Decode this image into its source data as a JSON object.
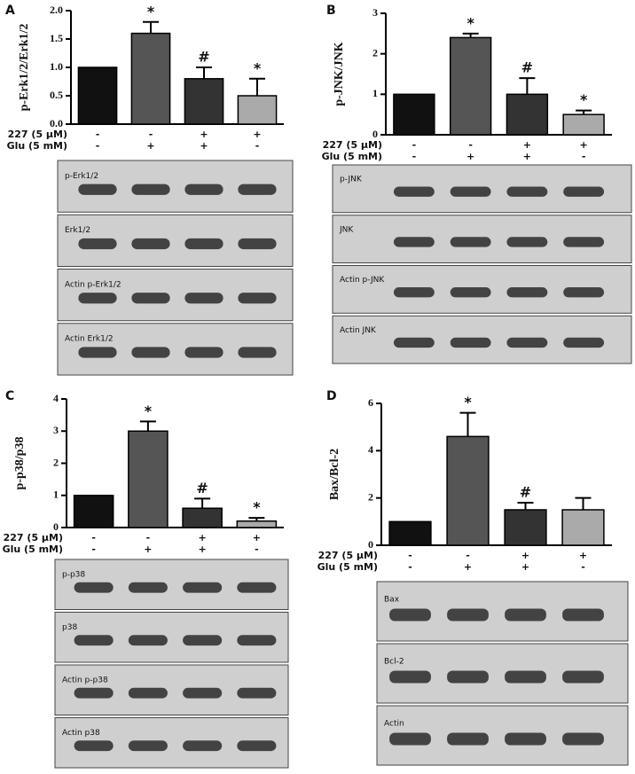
{
  "chart_data": [
    {
      "type": "bar",
      "panel": "A",
      "ylabel": "p-Erk1/2/Erk1/2",
      "values": [
        1.0,
        1.6,
        0.8,
        0.5
      ],
      "errors": [
        null,
        0.2,
        0.2,
        0.3
      ],
      "markers": [
        null,
        "*",
        "#",
        "*"
      ],
      "colors": [
        "#111111",
        "#555555",
        "#333333",
        "#aaaaaa"
      ],
      "ylim": [
        0,
        2
      ],
      "yticks": [
        {
          "value": 0,
          "label": "0.0"
        },
        {
          "value": 0.5,
          "label": "0.5"
        },
        {
          "value": 1,
          "label": "1.0"
        },
        {
          "value": 1.5,
          "label": "1.5"
        },
        {
          "value": 2,
          "label": "2.0"
        }
      ],
      "treatments": [
        {
          "name": "227 (5 μM)",
          "signs": [
            "-",
            "-",
            "+",
            "+"
          ]
        },
        {
          "name": "Glu (5 mM)",
          "signs": [
            "-",
            "+",
            "+",
            "-"
          ]
        }
      ],
      "blots": [
        "p-Erk1/2",
        "Erk1/2",
        "Actin p-Erk1/2",
        "Actin Erk1/2"
      ]
    },
    {
      "type": "bar",
      "panel": "B",
      "ylabel": "p-JNK/JNK",
      "values": [
        1.0,
        2.4,
        1.0,
        0.5
      ],
      "errors": [
        null,
        0.1,
        0.4,
        0.1
      ],
      "markers": [
        null,
        "*",
        "#",
        "*"
      ],
      "colors": [
        "#111111",
        "#555555",
        "#333333",
        "#aaaaaa"
      ],
      "ylim": [
        0,
        3
      ],
      "yticks": [
        0,
        1,
        2,
        3
      ],
      "treatments": [
        {
          "name": "227 (5 μM)",
          "signs": [
            "-",
            "-",
            "+",
            "+"
          ]
        },
        {
          "name": "Glu (5 mM)",
          "signs": [
            "-",
            "+",
            "+",
            "-"
          ]
        }
      ],
      "blots": [
        "p-JNK",
        "JNK",
        "Actin p-JNK",
        "Actin JNK"
      ]
    },
    {
      "type": "bar",
      "panel": "C",
      "ylabel": "p-p38/p38",
      "values": [
        1.0,
        3.0,
        0.6,
        0.2
      ],
      "errors": [
        null,
        0.3,
        0.3,
        0.1
      ],
      "markers": [
        null,
        "*",
        "#",
        "*"
      ],
      "colors": [
        "#111111",
        "#555555",
        "#333333",
        "#aaaaaa"
      ],
      "ylim": [
        0,
        4
      ],
      "yticks": [
        0,
        1,
        2,
        3,
        4
      ],
      "treatments": [
        {
          "name": "227 (5 μM)",
          "signs": [
            "-",
            "-",
            "+",
            "+"
          ]
        },
        {
          "name": "Glu (5 mM)",
          "signs": [
            "-",
            "+",
            "+",
            "-"
          ]
        }
      ],
      "blots": [
        "p-p38",
        "p38",
        "Actin p-p38",
        "Actin p38"
      ]
    },
    {
      "type": "bar",
      "panel": "D",
      "ylabel": "Bax/Bcl-2",
      "values": [
        1.0,
        4.6,
        1.5,
        1.5
      ],
      "errors": [
        null,
        1.0,
        0.3,
        0.5
      ],
      "markers": [
        null,
        "*",
        "#",
        null
      ],
      "colors": [
        "#111111",
        "#555555",
        "#333333",
        "#aaaaaa"
      ],
      "ylim": [
        0,
        6
      ],
      "yticks": [
        0,
        2,
        4,
        6
      ],
      "treatments": [
        {
          "name": "227 (5 μM)",
          "signs": [
            "-",
            "-",
            "+",
            "+"
          ]
        },
        {
          "name": "Glu (5 mM)",
          "signs": [
            "-",
            "+",
            "+",
            "-"
          ]
        }
      ],
      "blots": [
        "Bax",
        "Bcl-2",
        "Actin"
      ]
    }
  ]
}
